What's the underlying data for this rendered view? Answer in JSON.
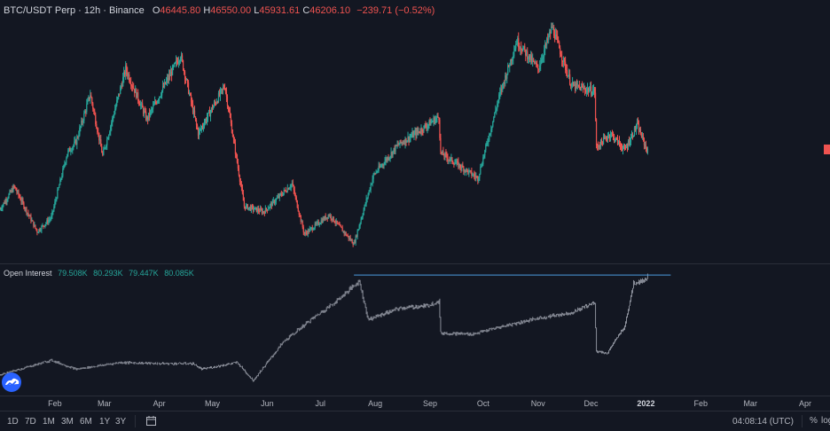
{
  "header": {
    "symbol": "BTC/USDT Perp · 12h · Binance",
    "open_label": "O",
    "open": "46445.80",
    "high_label": "H",
    "high": "46550.00",
    "low_label": "L",
    "low": "45931.61",
    "close_label": "C",
    "close": "46206.10",
    "change": "−239.71 (−0.52%)"
  },
  "oi_legend": {
    "label": "Open Interest",
    "v1": "79.508K",
    "v2": "80.293K",
    "v3": "79.447K",
    "v4": "80.085K"
  },
  "colors": {
    "up": "#26a69a",
    "down": "#ef5350",
    "level_line": "#4c9ce0",
    "oi_bar": "#8a8e99"
  },
  "timeframes": [
    "1D",
    "7D",
    "1M",
    "3M",
    "6M",
    "1Y",
    "3Y"
  ],
  "footer": {
    "clock": "04:08:14 (UTC)",
    "percent": "%",
    "log": "log"
  },
  "chart_data": [
    {
      "type": "candlestick",
      "series": [
        {
          "name": "BTC/USDT Perp"
        }
      ],
      "x_tick_labels": [
        "Feb",
        "Mar",
        "Apr",
        "May",
        "Jun",
        "Jul",
        "Aug",
        "Sep",
        "Oct",
        "Nov",
        "Dec",
        "2022",
        "Feb",
        "Mar",
        "Apr"
      ],
      "x_range": [
        "2021-01-01",
        "2022-04-15"
      ],
      "y_range": [
        29000,
        69500
      ],
      "close_path": [
        [
          "2021-01-01",
          36000
        ],
        [
          "2021-01-09",
          40000
        ],
        [
          "2021-01-22",
          32000
        ],
        [
          "2021-01-30",
          34500
        ],
        [
          "2021-02-08",
          46000
        ],
        [
          "2021-02-13",
          48000
        ],
        [
          "2021-02-21",
          56500
        ],
        [
          "2021-02-28",
          45500
        ],
        [
          "2021-03-13",
          61000
        ],
        [
          "2021-03-25",
          52000
        ],
        [
          "2021-04-13",
          63500
        ],
        [
          "2021-04-23",
          49500
        ],
        [
          "2021-05-08",
          58000
        ],
        [
          "2021-05-19",
          36500
        ],
        [
          "2021-05-30",
          35500
        ],
        [
          "2021-06-15",
          40500
        ],
        [
          "2021-06-22",
          31500
        ],
        [
          "2021-07-06",
          35000
        ],
        [
          "2021-07-20",
          29800
        ],
        [
          "2021-07-31",
          42000
        ],
        [
          "2021-08-14",
          47500
        ],
        [
          "2021-08-24",
          49500
        ],
        [
          "2021-09-06",
          52500
        ],
        [
          "2021-09-07",
          46000
        ],
        [
          "2021-09-28",
          41500
        ],
        [
          "2021-10-10",
          56000
        ],
        [
          "2021-10-20",
          66000
        ],
        [
          "2021-11-01",
          61000
        ],
        [
          "2021-11-09",
          68500
        ],
        [
          "2021-11-20",
          58000
        ],
        [
          "2021-12-03",
          57000
        ],
        [
          "2021-12-04",
          47000
        ],
        [
          "2021-12-12",
          49500
        ],
        [
          "2021-12-20",
          46500
        ],
        [
          "2021-12-27",
          51000
        ],
        [
          "2022-01-02",
          46200
        ]
      ]
    },
    {
      "type": "bar",
      "series": [
        {
          "name": "Open Interest"
        }
      ],
      "x_range": [
        "2021-01-01",
        "2022-04-15"
      ],
      "level_line": {
        "value": 80100,
        "from": "2021-07-20",
        "to": "2022-01-15"
      },
      "path": [
        [
          "2021-01-01",
          36000
        ],
        [
          "2021-01-30",
          42500
        ],
        [
          "2021-02-13",
          38500
        ],
        [
          "2021-03-10",
          41500
        ],
        [
          "2021-04-01",
          41000
        ],
        [
          "2021-04-20",
          41000
        ],
        [
          "2021-04-25",
          38500
        ],
        [
          "2021-05-15",
          41500
        ],
        [
          "2021-05-24",
          33500
        ],
        [
          "2021-06-10",
          50500
        ],
        [
          "2021-06-25",
          60000
        ],
        [
          "2021-07-10",
          68500
        ],
        [
          "2021-07-23",
          77500
        ],
        [
          "2021-07-28",
          60500
        ],
        [
          "2021-08-15",
          65500
        ],
        [
          "2021-08-30",
          66500
        ],
        [
          "2021-09-06",
          68500
        ],
        [
          "2021-09-07",
          54500
        ],
        [
          "2021-09-25",
          54000
        ],
        [
          "2021-10-15",
          58000
        ],
        [
          "2021-11-01",
          61000
        ],
        [
          "2021-11-20",
          63500
        ],
        [
          "2021-12-03",
          68000
        ],
        [
          "2021-12-04",
          46500
        ],
        [
          "2021-12-10",
          45500
        ],
        [
          "2021-12-20",
          57500
        ],
        [
          "2021-12-25",
          76500
        ],
        [
          "2022-01-01",
          78000
        ],
        [
          "2022-01-02",
          80100
        ]
      ]
    }
  ]
}
